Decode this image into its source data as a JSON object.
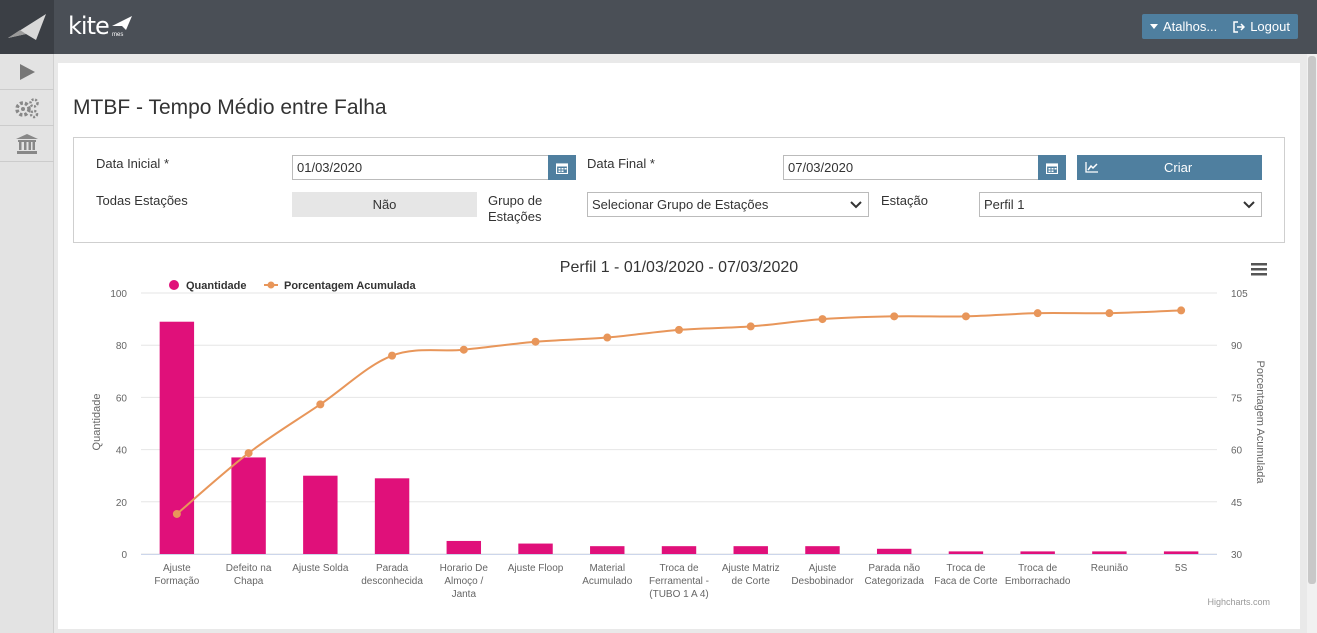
{
  "header": {
    "brand": "kite",
    "brand_sub": "mes",
    "shortcuts_label": "Atalhos...",
    "logout_label": "Logout"
  },
  "page": {
    "title": "MTBF - Tempo Médio entre Falha"
  },
  "filters": {
    "start_label": "Data Inicial",
    "start_value": "01/03/2020",
    "end_label": "Data Final",
    "end_value": "07/03/2020",
    "required_mark": "*",
    "create_label": "Criar",
    "all_stations_label": "Todas Estações",
    "all_stations_value": "Não",
    "group_label_1": "Grupo de",
    "group_label_2": "Estações",
    "group_value": "Selecionar Grupo de Estações",
    "station_label": "Estação",
    "station_value": "Perfil 1"
  },
  "colors": {
    "bar": "#e0107a",
    "line": "#e8965a",
    "accent": "#4f7f9f"
  },
  "chart_data": {
    "type": "bar",
    "title": "Perfil 1 - 01/03/2020 - 07/03/2020",
    "categories": [
      [
        "Ajuste",
        "Formação"
      ],
      [
        "Defeito na",
        "Chapa"
      ],
      [
        "Ajuste Solda"
      ],
      [
        "Parada",
        "desconhecida"
      ],
      [
        "Horario De",
        "Almoço /",
        "Janta"
      ],
      [
        "Ajuste Floop"
      ],
      [
        "Material",
        "Acumulado"
      ],
      [
        "Troca de",
        "Ferramental -",
        "(TUBO 1 A 4)"
      ],
      [
        "Ajuste Matriz",
        "de Corte"
      ],
      [
        "Ajuste",
        "Desbobinador"
      ],
      [
        "Parada não",
        "Categorizada"
      ],
      [
        "Troca de",
        "Faca de Corte"
      ],
      [
        "Troca de",
        "Emborrachado"
      ],
      [
        "Reunião"
      ],
      [
        "5S"
      ]
    ],
    "series": [
      {
        "name": "Quantidade",
        "type": "bar",
        "axis": "left",
        "values": [
          89,
          37,
          30,
          29,
          5,
          4,
          3,
          3,
          3,
          3,
          2,
          1,
          1,
          1,
          1
        ]
      },
      {
        "name": "Porcentagem Acumulada",
        "type": "line",
        "axis": "right",
        "values": [
          41.5,
          59,
          73,
          87,
          88.7,
          91,
          92.2,
          94.4,
          95.4,
          97.5,
          98.3,
          98.3,
          99.2,
          99.2,
          100
        ]
      }
    ],
    "ylabel": "Quantidade",
    "ylabel_right": "Porcentagem Acumulada",
    "ylim": [
      0,
      100
    ],
    "ylim_right": [
      30,
      105
    ],
    "yticks": [
      0,
      20,
      40,
      60,
      80,
      100
    ],
    "yticks_right": [
      30,
      45,
      60,
      75,
      90,
      105
    ],
    "legend": "top-left",
    "credits": "Highcharts.com"
  }
}
